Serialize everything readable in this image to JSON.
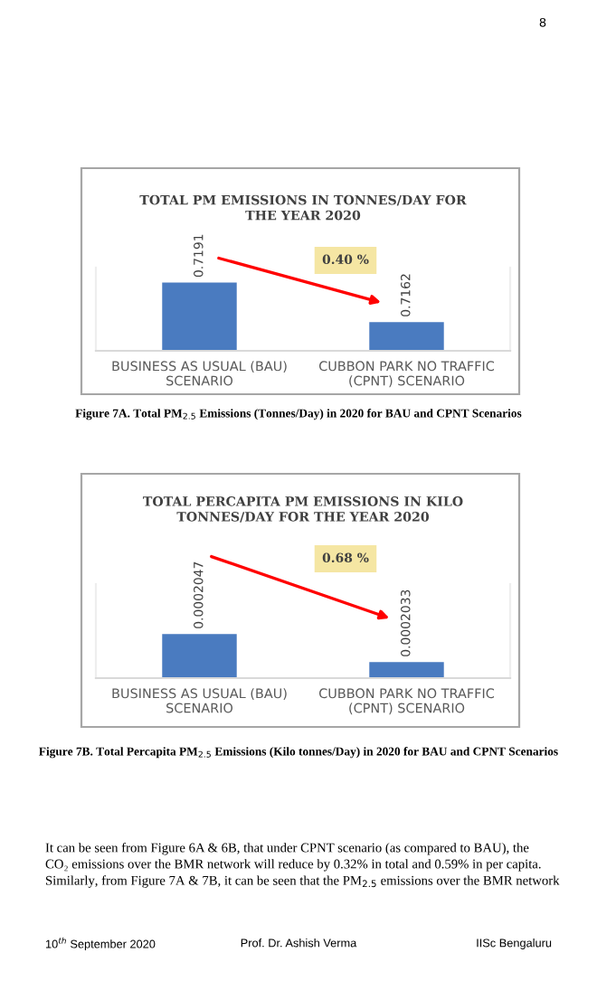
{
  "chart_data": [
    {
      "type": "bar",
      "title": "TOTAL PM EMISSIONS IN TONNES/DAY FOR\nTHE YEAR 2020",
      "categories": [
        "BUSINESS AS USUAL (BAU)\nSCENARIO",
        "CUBBON PARK NO TRAFFIC\n(CPNT) SCENARIO"
      ],
      "values": [
        0.7191,
        0.7162
      ],
      "color": "#4a7bc0",
      "ylim": [
        0.7141,
        0.7202
      ],
      "tick_labels": "x",
      "data_labels": true,
      "grid": false,
      "legend": false,
      "annotations": [
        "0.40 %",
        "Figure 7A. Total PM$_{2.5}$ Emissions (Tonnes/Day) in 2020 for BAU and CPNT Scenarios",
        "8"
      ]
    },
    {
      "type": "bar",
      "title": "TOTAL PERCAPITA PM EMISSIONS IN KILO\nTONNES/DAY FOR THE YEAR 2020",
      "categories": [
        "BUSINESS AS USUAL (BAU)\nSCENARIO",
        "CUBBON PARK NO TRAFFIC\n(CPNT) SCENARIO"
      ],
      "values": [
        0.0002047,
        0.0002033
      ],
      "color": "#4a7bc0",
      "ylim": [
        0.0002025,
        0.0002072
      ],
      "tick_labels": "x",
      "data_labels": true,
      "grid": false,
      "legend": false,
      "annotations": [
        "0.68 %",
        "Figure 7B. Total Percapita PM$_{2.5}$ Emissions (Kilo tonnes/Day) in 2020 for BAU and CPNT Scenarios",
        "It can be seen from Figure 6A & 6B, that under CPNT scenario (as compared to BAU), the\nCO₂ emissions over the BMR network will reduce by 0.32% in total and 0.59% in per capita.\nSimilarly, from Figure 7A & 7B, it can be seen that the PM$_{2.5}$ emissions over the BMR network",
        "10$^{th}$ September 2020",
        "Prof. Dr. Ashish Verma",
        "IISc Bengaluru"
      ]
    }
  ]
}
